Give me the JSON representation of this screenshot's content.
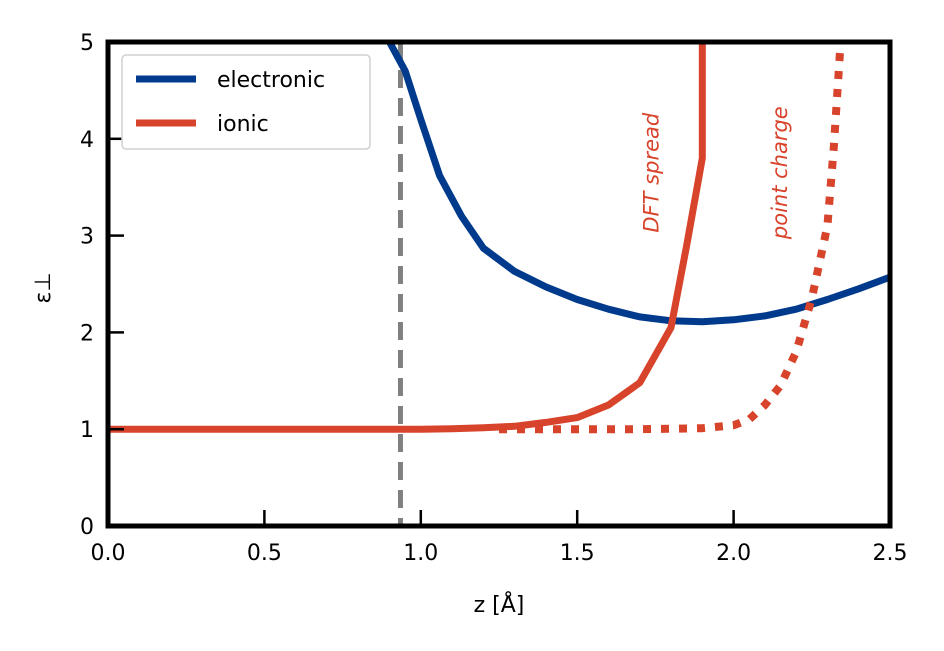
{
  "chart_data": {
    "type": "line",
    "title": "",
    "xlabel": "z [Å]",
    "ylabel": "ε⊥",
    "xlim": [
      0.0,
      2.5
    ],
    "ylim": [
      0,
      5
    ],
    "x_ticks": [
      0.0,
      0.5,
      1.0,
      1.5,
      2.0,
      2.5
    ],
    "x_tick_labels": [
      "0.0",
      "0.5",
      "1.0",
      "1.5",
      "2.0",
      "2.5"
    ],
    "y_ticks": [
      0,
      1,
      2,
      3,
      4,
      5
    ],
    "y_tick_labels": [
      "0",
      "1",
      "2",
      "3",
      "4",
      "5"
    ],
    "grid": false,
    "legend_placement": "top-left",
    "vertical_reference_line": {
      "x": 0.935,
      "style": "dashed",
      "color": "#808080"
    },
    "series": [
      {
        "name": "electronic",
        "style": "solid",
        "color": "#003A8C",
        "in_legend": true,
        "points": [
          [
            0.9,
            5.0
          ],
          [
            0.95,
            4.7
          ],
          [
            1.0,
            4.2
          ],
          [
            1.06,
            3.62
          ],
          [
            1.13,
            3.2
          ],
          [
            1.2,
            2.87
          ],
          [
            1.3,
            2.63
          ],
          [
            1.4,
            2.47
          ],
          [
            1.5,
            2.34
          ],
          [
            1.6,
            2.24
          ],
          [
            1.7,
            2.16
          ],
          [
            1.8,
            2.12
          ],
          [
            1.9,
            2.11
          ],
          [
            2.0,
            2.13
          ],
          [
            2.1,
            2.17
          ],
          [
            2.2,
            2.24
          ],
          [
            2.3,
            2.34
          ],
          [
            2.4,
            2.45
          ],
          [
            2.5,
            2.57
          ]
        ]
      },
      {
        "name": "ionic",
        "style": "solid",
        "color": "#D8432B",
        "in_legend": true,
        "points": [
          [
            0.0,
            1.0
          ],
          [
            0.5,
            1.0
          ],
          [
            0.935,
            1.0
          ],
          [
            1.0,
            1.0
          ],
          [
            1.1,
            1.005
          ],
          [
            1.2,
            1.015
          ],
          [
            1.3,
            1.03
          ],
          [
            1.4,
            1.07
          ],
          [
            1.5,
            1.12
          ],
          [
            1.6,
            1.25
          ],
          [
            1.7,
            1.48
          ],
          [
            1.8,
            2.05
          ],
          [
            1.85,
            2.9
          ],
          [
            1.9,
            3.8
          ],
          [
            1.9,
            5.0
          ]
        ]
      },
      {
        "style": "dotted",
        "color": "#D8432B",
        "in_legend": false,
        "points": [
          [
            1.25,
            1.0
          ],
          [
            1.5,
            1.0
          ],
          [
            1.7,
            1.0
          ],
          [
            1.9,
            1.01
          ],
          [
            2.0,
            1.04
          ],
          [
            2.05,
            1.1
          ],
          [
            2.1,
            1.25
          ],
          [
            2.15,
            1.45
          ],
          [
            2.2,
            1.8
          ],
          [
            2.25,
            2.35
          ],
          [
            2.3,
            3.1
          ],
          [
            2.32,
            3.9
          ],
          [
            2.34,
            4.9
          ]
        ]
      }
    ],
    "legend": [
      {
        "label": "electronic",
        "color": "#003A8C"
      },
      {
        "label": "ionic",
        "color": "#D8432B"
      }
    ],
    "annotations": [
      {
        "text": "DFT spread",
        "x": 1.76,
        "y": 3.65,
        "rotation": -90,
        "color": "#D8432B"
      },
      {
        "text": "point charge",
        "x": 2.17,
        "y": 3.65,
        "rotation": -90,
        "color": "#D8432B"
      }
    ]
  }
}
